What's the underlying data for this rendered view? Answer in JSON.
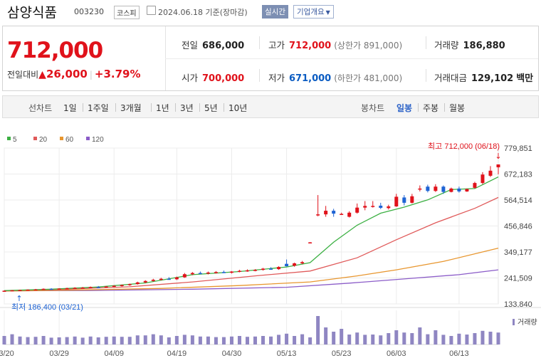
{
  "header": {
    "name": "삼양식품",
    "code": "003230",
    "market": "코스피",
    "date_text": "2024.06.18 기준(장마감)",
    "realtime_label": "실시간",
    "company_label": "기업개요",
    "company_caret": "▼"
  },
  "quote": {
    "price": "712,000",
    "change_label": "전일대비",
    "change_arrow": "▲",
    "change_value": "26,000",
    "change_pct": "+3.79%",
    "prev_close": {
      "label": "전일",
      "value": "686,000"
    },
    "high": {
      "label": "고가",
      "value": "712,000",
      "sub": "(상한가 891,000)"
    },
    "volume": {
      "label": "거래량",
      "value": "186,880"
    },
    "open": {
      "label": "시가",
      "value": "700,000"
    },
    "low": {
      "label": "저가",
      "value": "671,000",
      "sub": "(하한가 481,000)"
    },
    "amount": {
      "label": "거래대금",
      "value": "129,102",
      "unit": "백만"
    }
  },
  "toolbar": {
    "line_label": "선차트",
    "periods": [
      "1일",
      "1주일",
      "3개월",
      "1년",
      "3년",
      "5년",
      "10년"
    ],
    "candle_label": "봉차트",
    "candles": [
      "일봉",
      "주봉",
      "월봉"
    ],
    "selected_candle": "일봉"
  },
  "chart_data": {
    "type": "candlestick",
    "legend": [
      {
        "name": "5",
        "color": "#3cb043"
      },
      {
        "name": "20",
        "color": "#e05a5a"
      },
      {
        "name": "60",
        "color": "#e8962e"
      },
      {
        "name": "120",
        "color": "#8b5cc8"
      }
    ],
    "y_ticks": [
      "779,851",
      "672,183",
      "564,514",
      "456,846",
      "349,177",
      "241,509",
      "133,840"
    ],
    "y_range": [
      133840,
      779851
    ],
    "x_ticks": [
      {
        "label": "03/20",
        "i": 0
      },
      {
        "label": "03/29",
        "i": 7
      },
      {
        "label": "04/09",
        "i": 14
      },
      {
        "label": "04/19",
        "i": 22
      },
      {
        "label": "04/30",
        "i": 29
      },
      {
        "label": "05/13",
        "i": 36
      },
      {
        "label": "05/23",
        "i": 43
      },
      {
        "label": "06/03",
        "i": 50
      },
      {
        "label": "06/13",
        "i": 58
      }
    ],
    "high_annotation": {
      "text": "최고 712,000 (06/18)",
      "arrow": "↓",
      "i": 63,
      "value": 712000
    },
    "low_annotation": {
      "text": "최저 186,400 (03/21)",
      "arrow": "↑",
      "i": 1,
      "value": 186400
    },
    "volume_label": "거래량",
    "candles": [
      {
        "o": 187000,
        "h": 190000,
        "l": 185000,
        "c": 188500,
        "v": 30
      },
      {
        "o": 188500,
        "h": 191000,
        "l": 186400,
        "c": 190500,
        "v": 36
      },
      {
        "o": 190500,
        "h": 193000,
        "l": 188500,
        "c": 191500,
        "v": 28
      },
      {
        "o": 191500,
        "h": 194000,
        "l": 189500,
        "c": 193000,
        "v": 26
      },
      {
        "o": 193000,
        "h": 196000,
        "l": 191000,
        "c": 194000,
        "v": 27
      },
      {
        "o": 194000,
        "h": 198000,
        "l": 192500,
        "c": 196500,
        "v": 30
      },
      {
        "o": 196500,
        "h": 199000,
        "l": 194000,
        "c": 195000,
        "v": 24
      },
      {
        "o": 195000,
        "h": 199000,
        "l": 193500,
        "c": 197500,
        "v": 25
      },
      {
        "o": 197500,
        "h": 201000,
        "l": 195500,
        "c": 199000,
        "v": 26
      },
      {
        "o": 199000,
        "h": 203000,
        "l": 197000,
        "c": 200500,
        "v": 28
      },
      {
        "o": 200500,
        "h": 204000,
        "l": 198500,
        "c": 201500,
        "v": 24
      },
      {
        "o": 201500,
        "h": 206000,
        "l": 199500,
        "c": 204000,
        "v": 28
      },
      {
        "o": 204000,
        "h": 208000,
        "l": 202000,
        "c": 203000,
        "v": 25
      },
      {
        "o": 203000,
        "h": 208000,
        "l": 201000,
        "c": 206000,
        "v": 27
      },
      {
        "o": 206000,
        "h": 211000,
        "l": 204000,
        "c": 209000,
        "v": 28
      },
      {
        "o": 209000,
        "h": 214000,
        "l": 206000,
        "c": 212000,
        "v": 27
      },
      {
        "o": 212000,
        "h": 218000,
        "l": 209000,
        "c": 216000,
        "v": 27
      },
      {
        "o": 216000,
        "h": 226000,
        "l": 214000,
        "c": 223000,
        "v": 32
      },
      {
        "o": 223000,
        "h": 232000,
        "l": 220000,
        "c": 229000,
        "v": 32
      },
      {
        "o": 229000,
        "h": 238000,
        "l": 226000,
        "c": 234000,
        "v": 36
      },
      {
        "o": 234000,
        "h": 242000,
        "l": 231000,
        "c": 238000,
        "v": 32
      },
      {
        "o": 238000,
        "h": 245000,
        "l": 234000,
        "c": 236000,
        "v": 25
      },
      {
        "o": 236000,
        "h": 247000,
        "l": 233000,
        "c": 244000,
        "v": 30
      },
      {
        "o": 244000,
        "h": 262000,
        "l": 242000,
        "c": 257000,
        "v": 34
      },
      {
        "o": 257000,
        "h": 266000,
        "l": 253000,
        "c": 262000,
        "v": 32
      },
      {
        "o": 262000,
        "h": 268000,
        "l": 257000,
        "c": 260000,
        "v": 28
      },
      {
        "o": 260000,
        "h": 268000,
        "l": 256000,
        "c": 264000,
        "v": 28
      },
      {
        "o": 264000,
        "h": 270000,
        "l": 260000,
        "c": 266000,
        "v": 26
      },
      {
        "o": 266000,
        "h": 272000,
        "l": 262000,
        "c": 263000,
        "v": 26
      },
      {
        "o": 263000,
        "h": 270000,
        "l": 260000,
        "c": 268000,
        "v": 28
      },
      {
        "o": 268000,
        "h": 275000,
        "l": 265000,
        "c": 271000,
        "v": 30
      },
      {
        "o": 271000,
        "h": 277000,
        "l": 267000,
        "c": 273000,
        "v": 27
      },
      {
        "o": 273000,
        "h": 278000,
        "l": 269000,
        "c": 275000,
        "v": 28
      },
      {
        "o": 275000,
        "h": 283000,
        "l": 272000,
        "c": 280000,
        "v": 30
      },
      {
        "o": 280000,
        "h": 286000,
        "l": 276000,
        "c": 278000,
        "v": 28
      },
      {
        "o": 278000,
        "h": 290000,
        "l": 275000,
        "c": 287000,
        "v": 34
      },
      {
        "o": 300000,
        "h": 318000,
        "l": 289000,
        "c": 290000,
        "v": 38
      },
      {
        "o": 292000,
        "h": 305000,
        "l": 288000,
        "c": 302000,
        "v": 30
      },
      {
        "o": 302000,
        "h": 312000,
        "l": 298000,
        "c": 307000,
        "v": 36
      },
      {
        "o": 389000,
        "h": 390000,
        "l": 387000,
        "c": 389000,
        "v": 25
      },
      {
        "o": 505000,
        "h": 585000,
        "l": 497000,
        "c": 505000,
        "v": 100
      },
      {
        "o": 505000,
        "h": 540000,
        "l": 495000,
        "c": 520000,
        "v": 60
      },
      {
        "o": 520000,
        "h": 528000,
        "l": 495000,
        "c": 508000,
        "v": 45
      },
      {
        "o": 507000,
        "h": 512000,
        "l": 505000,
        "c": 507000,
        "v": 55
      },
      {
        "o": 495000,
        "h": 518000,
        "l": 492000,
        "c": 512000,
        "v": 35
      },
      {
        "o": 512000,
        "h": 550000,
        "l": 508000,
        "c": 533000,
        "v": 42
      },
      {
        "o": 533000,
        "h": 560000,
        "l": 522000,
        "c": 540000,
        "v": 34
      },
      {
        "o": 540000,
        "h": 560000,
        "l": 533000,
        "c": 540000,
        "v": 35
      },
      {
        "o": 541000,
        "h": 553000,
        "l": 527000,
        "c": 532000,
        "v": 32
      },
      {
        "o": 531000,
        "h": 545000,
        "l": 525000,
        "c": 538000,
        "v": 40
      },
      {
        "o": 538000,
        "h": 590000,
        "l": 536000,
        "c": 578000,
        "v": 50
      },
      {
        "o": 575000,
        "h": 585000,
        "l": 542000,
        "c": 553000,
        "v": 42
      },
      {
        "o": 553000,
        "h": 590000,
        "l": 550000,
        "c": 580000,
        "v": 40
      },
      {
        "o": 612000,
        "h": 625000,
        "l": 600000,
        "c": 612000,
        "v": 60
      },
      {
        "o": 620000,
        "h": 628000,
        "l": 596000,
        "c": 602000,
        "v": 36
      },
      {
        "o": 602000,
        "h": 630000,
        "l": 598000,
        "c": 620000,
        "v": 50
      },
      {
        "o": 620000,
        "h": 625000,
        "l": 590000,
        "c": 598000,
        "v": 34
      },
      {
        "o": 598000,
        "h": 616000,
        "l": 596000,
        "c": 612000,
        "v": 30
      },
      {
        "o": 612000,
        "h": 620000,
        "l": 595000,
        "c": 600000,
        "v": 38
      },
      {
        "o": 600000,
        "h": 612000,
        "l": 598000,
        "c": 610000,
        "v": 35
      },
      {
        "o": 615000,
        "h": 640000,
        "l": 612000,
        "c": 635000,
        "v": 40
      },
      {
        "o": 635000,
        "h": 680000,
        "l": 630000,
        "c": 670000,
        "v": 48
      },
      {
        "o": 665000,
        "h": 705000,
        "l": 660000,
        "c": 686000,
        "v": 45
      },
      {
        "o": 700000,
        "h": 712000,
        "l": 671000,
        "c": 712000,
        "v": 42
      }
    ],
    "ma5": [
      [
        0,
        189000
      ],
      [
        6,
        195000
      ],
      [
        12,
        204000
      ],
      [
        18,
        221000
      ],
      [
        24,
        255000
      ],
      [
        30,
        268000
      ],
      [
        36,
        287000
      ],
      [
        39,
        305000
      ],
      [
        42,
        390000
      ],
      [
        45,
        460000
      ],
      [
        48,
        510000
      ],
      [
        51,
        535000
      ],
      [
        54,
        565000
      ],
      [
        57,
        608000
      ],
      [
        60,
        612000
      ],
      [
        63,
        660000
      ]
    ],
    "ma20": [
      [
        0,
        188000
      ],
      [
        8,
        195000
      ],
      [
        16,
        205000
      ],
      [
        24,
        225000
      ],
      [
        32,
        250000
      ],
      [
        39,
        270000
      ],
      [
        45,
        325000
      ],
      [
        50,
        400000
      ],
      [
        55,
        470000
      ],
      [
        60,
        530000
      ],
      [
        63,
        575000
      ]
    ],
    "ma60": [
      [
        0,
        187000
      ],
      [
        10,
        192000
      ],
      [
        20,
        198000
      ],
      [
        30,
        210000
      ],
      [
        39,
        225000
      ],
      [
        45,
        250000
      ],
      [
        50,
        275000
      ],
      [
        56,
        310000
      ],
      [
        63,
        365000
      ]
    ],
    "ma120": [
      [
        0,
        188000
      ],
      [
        12,
        190000
      ],
      [
        24,
        195000
      ],
      [
        36,
        203000
      ],
      [
        44,
        220000
      ],
      [
        52,
        240000
      ],
      [
        58,
        255000
      ],
      [
        63,
        275000
      ]
    ]
  }
}
